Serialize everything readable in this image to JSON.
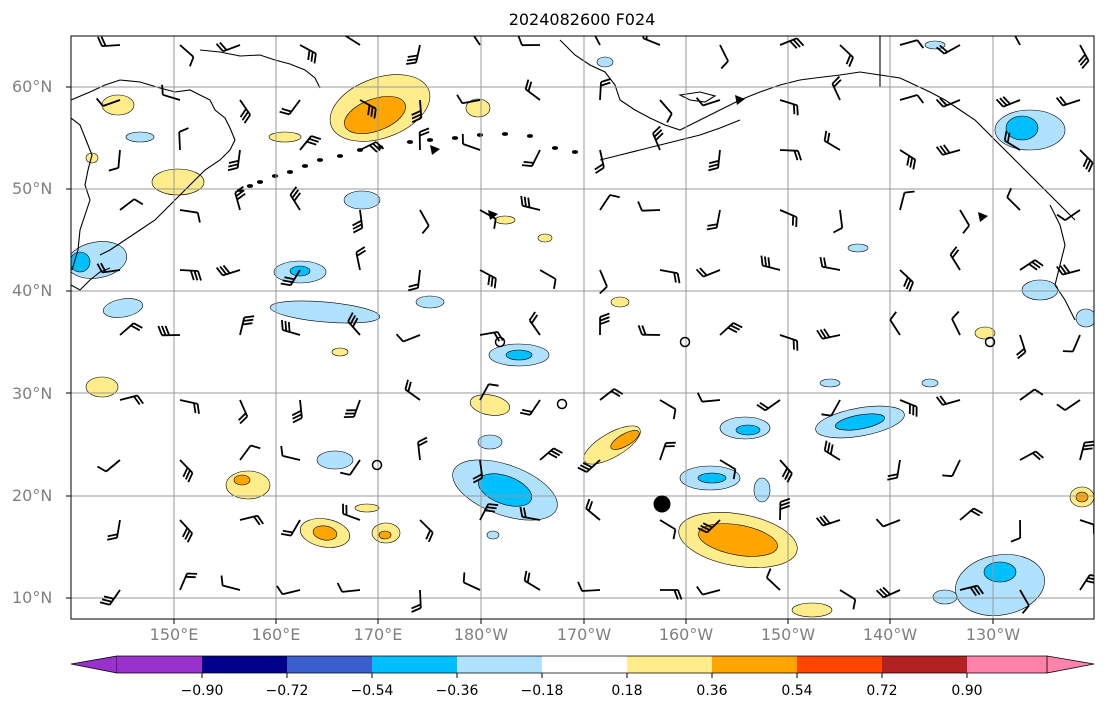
{
  "title": "2024082600 F024",
  "lat_labels": [
    "60°N",
    "50°N",
    "40°N",
    "30°N",
    "20°N",
    "10°N"
  ],
  "lon_labels": [
    "150°E",
    "160°E",
    "170°E",
    "180°W",
    "170°W",
    "160°W",
    "150°W",
    "140°W",
    "130°W"
  ],
  "colorbar": {
    "ticks": [
      "−0.90",
      "−0.72",
      "−0.54",
      "−0.36",
      "−0.18",
      "0.18",
      "0.36",
      "0.54",
      "0.72",
      "0.90"
    ],
    "colors": {
      "under": "#9932cc",
      "neg90_72": "#00008b",
      "neg72_54": "#3a5fcd",
      "neg54_36": "#00bfff",
      "neg36_18": "#b0e2ff",
      "neutral": "#ffffff",
      "pos18_36": "#ffec8b",
      "pos36_54": "#ffa500",
      "pos54_72": "#ff4500",
      "pos72_90": "#b22222",
      "over": "#ff82ab"
    }
  }
}
